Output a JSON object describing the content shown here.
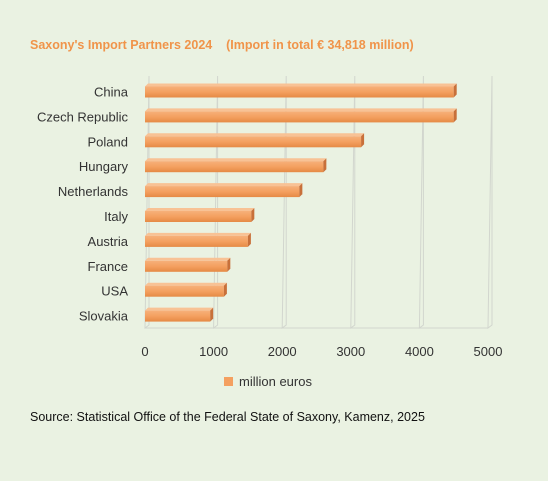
{
  "chart_data": {
    "type": "bar",
    "orientation": "horizontal",
    "title": "Saxony's Import Partners 2024    (Import in total € 34,818 million)",
    "categories": [
      "China",
      "Czech Republic",
      "Poland",
      "Hungary",
      "Netherlands",
      "Italy",
      "Austria",
      "France",
      "USA",
      "Slovakia"
    ],
    "series": [
      {
        "name": "million euros",
        "values": [
          4500,
          4500,
          3150,
          2600,
          2250,
          1550,
          1500,
          1200,
          1150,
          950
        ]
      }
    ],
    "xlim": [
      0,
      5000
    ],
    "xticks": [
      0,
      1000,
      2000,
      3000,
      4000,
      5000
    ],
    "grid": "vertical",
    "legend": "bottom",
    "bar_color": "#f4a060"
  },
  "source": "Source: Statistical Office of the Federal State of Saxony, Kamenz, 2025"
}
